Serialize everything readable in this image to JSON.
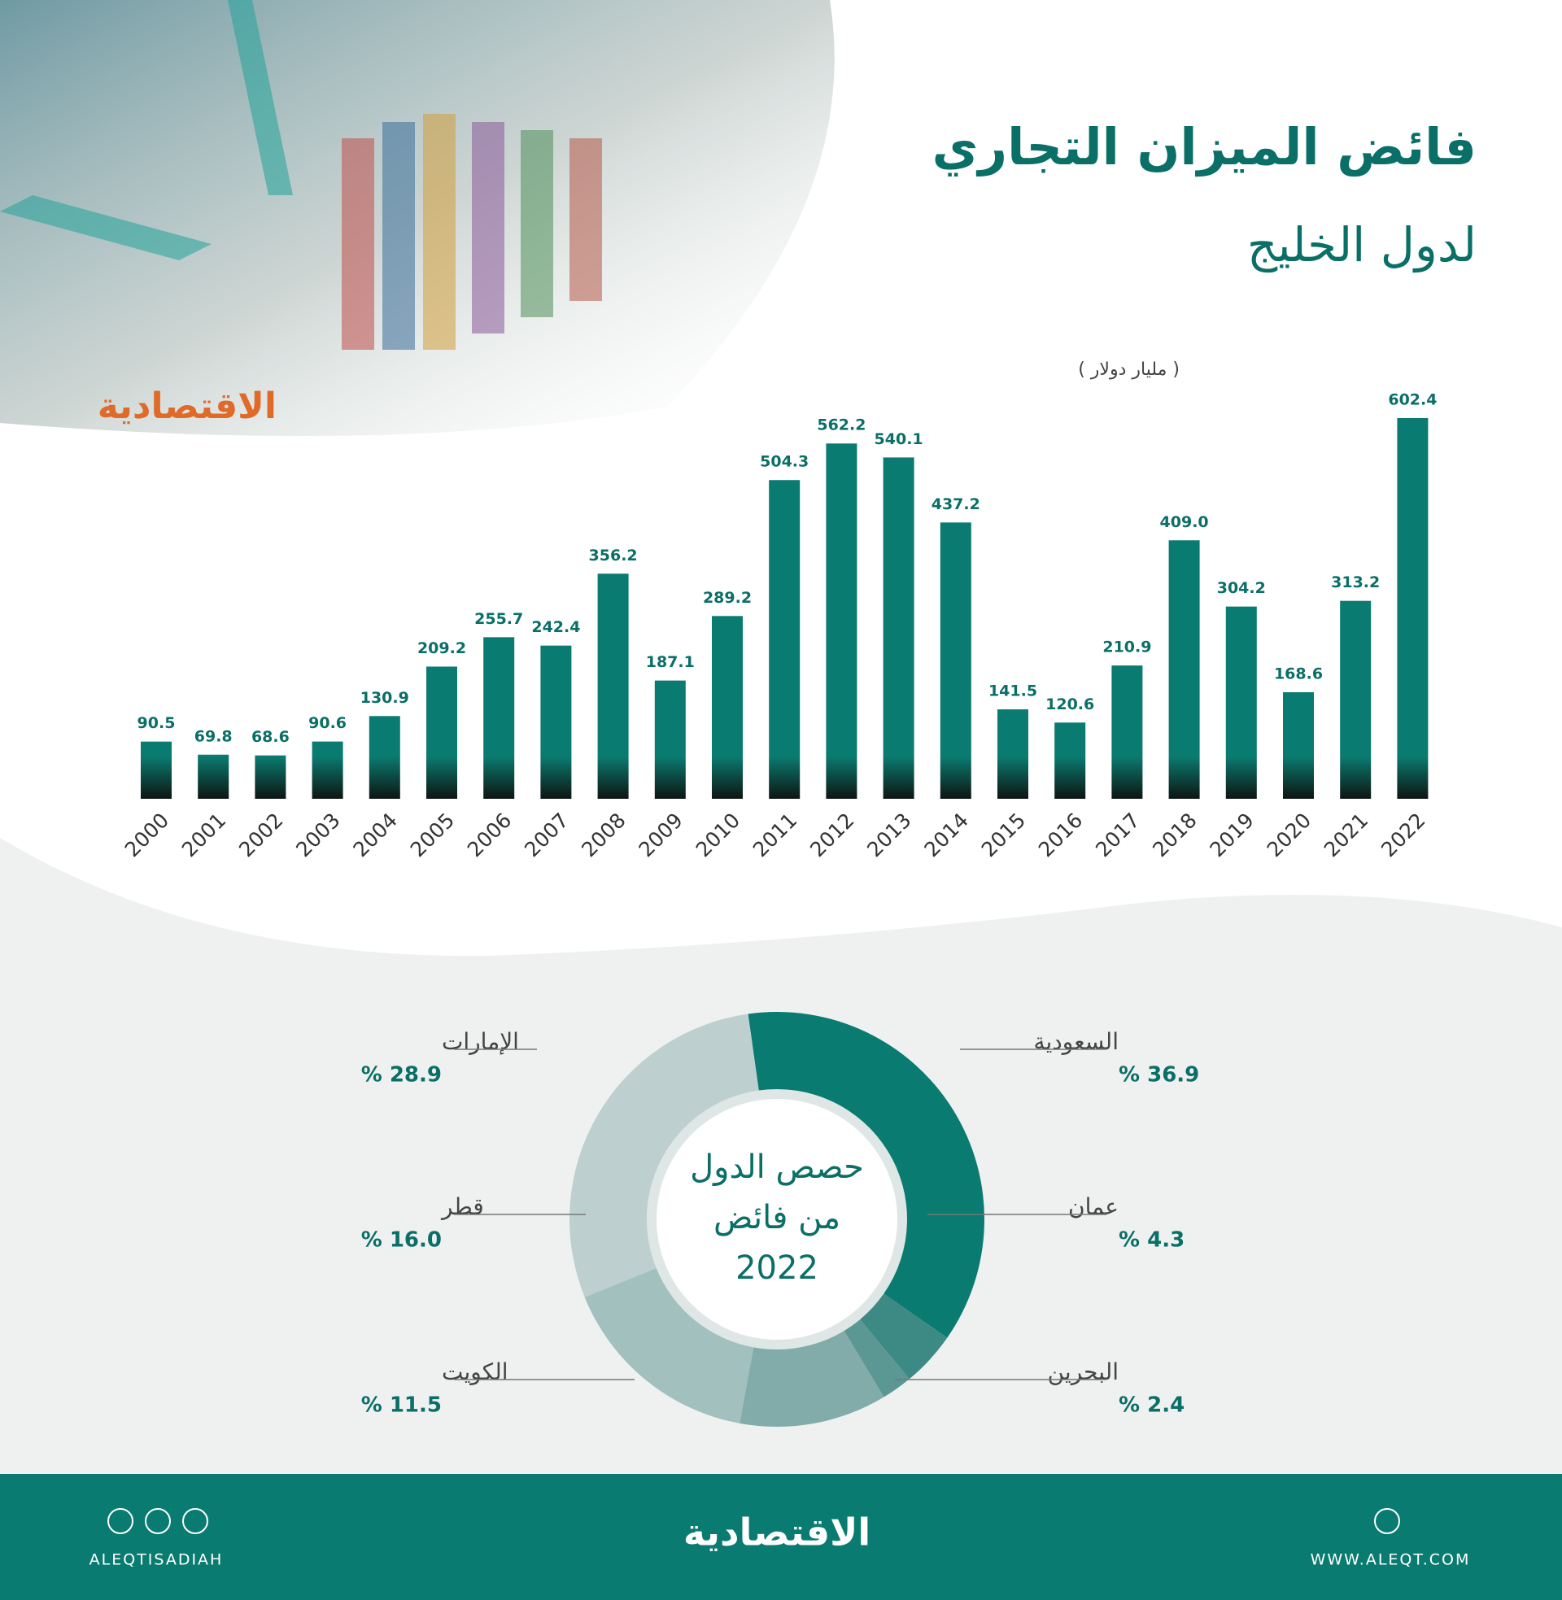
{
  "header": {
    "logo": "الاقتصادية"
  },
  "chart_data": [
    {
      "type": "bar",
      "title_lines": [
        "فائض الميزان التجاري",
        "لدول الخليج"
      ],
      "unit": "( مليار دولار )",
      "color": "#0a7b70",
      "categories": [
        "2000",
        "2001",
        "2002",
        "2003",
        "2004",
        "2005",
        "2006",
        "2007",
        "2008",
        "2009",
        "2010",
        "2011",
        "2012",
        "2013",
        "2014",
        "2015",
        "2016",
        "2017",
        "2018",
        "2019",
        "2020",
        "2021",
        "2022"
      ],
      "values": [
        90.5,
        69.8,
        68.6,
        90.6,
        130.9,
        209.2,
        255.7,
        242.4,
        356.2,
        187.1,
        289.2,
        504.3,
        562.2,
        540.1,
        437.2,
        141.5,
        120.6,
        210.9,
        409,
        304.2,
        168.6,
        313.2,
        602.4
      ],
      "value_labels": [
        "90.5",
        "69.8",
        "68.6",
        "90.6",
        "130.9",
        "209.2",
        "255.7",
        "242.4",
        "356.2",
        "187.1",
        "289.2",
        "504.3",
        "562.2",
        "540.1",
        "437.2",
        "141.5",
        "120.6",
        "210.9",
        "409.0",
        "304.2",
        "168.6",
        "313.2",
        "602.4"
      ]
    },
    {
      "type": "pie",
      "donut": true,
      "title_lines": [
        "حصص الدول",
        "من فائض",
        "2022"
      ],
      "categories": [
        "السعودية",
        "عمان",
        "البحرين",
        "الكويت",
        "قطر",
        "الإمارات"
      ],
      "values": [
        36.9,
        4.3,
        2.4,
        11.5,
        16.0,
        28.9
      ],
      "value_labels": [
        "% 36.9",
        "% 4.3",
        "% 2.4",
        "% 11.5",
        "% 16.0",
        "% 28.9"
      ],
      "colors": [
        "#0a7b70",
        "#3d8983",
        "#5b9893",
        "#82aca9",
        "#a2c0be",
        "#bdd0cf"
      ]
    }
  ],
  "footer": {
    "logo": "الاقتصادية",
    "social": "ALEQTISADIAH",
    "website": "WWW.ALEQT.COM"
  }
}
